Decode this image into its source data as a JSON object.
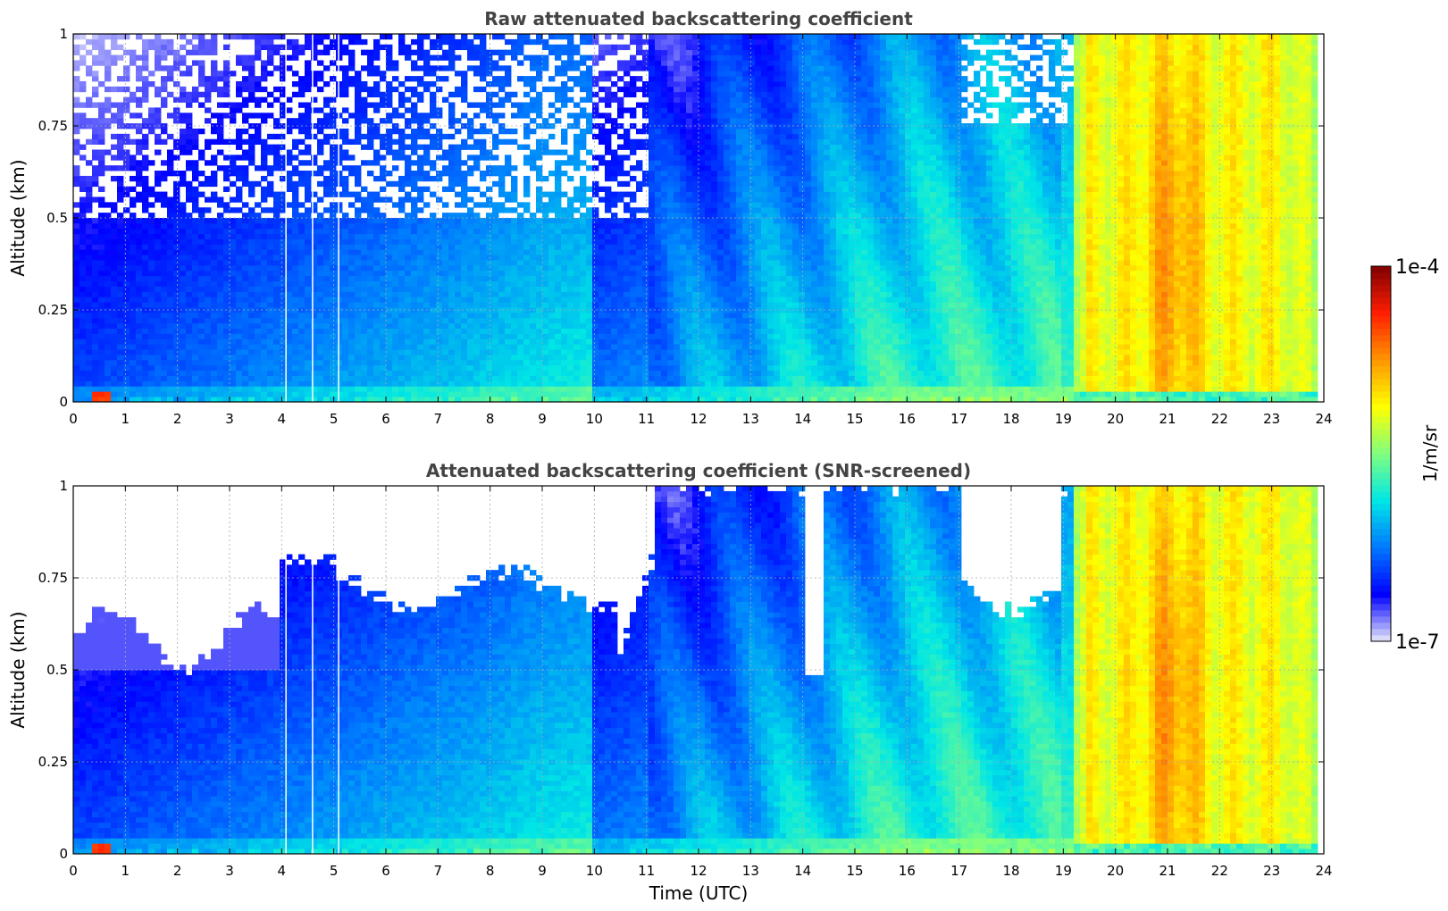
{
  "chart_data": [
    {
      "type": "heatmap",
      "title": "Raw attenuated backscattering coefficient",
      "xlabel": "",
      "ylabel": "Altitude (km)",
      "xlim": [
        0,
        24
      ],
      "ylim": [
        0,
        1
      ],
      "x_ticks": [
        "0",
        "1",
        "2",
        "3",
        "4",
        "5",
        "6",
        "7",
        "8",
        "9",
        "10",
        "11",
        "12",
        "13",
        "14",
        "15",
        "16",
        "17",
        "18",
        "19",
        "20",
        "21",
        "22",
        "23",
        "24"
      ],
      "y_ticks": [
        "0",
        "0.25",
        "0.5",
        "0.75",
        "1"
      ],
      "grid": true,
      "colorscale": "jet",
      "value_scale": "log",
      "clim": [
        "1e-7",
        "1e-4"
      ],
      "screened": false
    },
    {
      "type": "heatmap",
      "title": "Attenuated backscattering coefficient (SNR-screened)",
      "xlabel": "Time (UTC)",
      "ylabel": "Altitude (km)",
      "xlim": [
        0,
        24
      ],
      "ylim": [
        0,
        1
      ],
      "x_ticks": [
        "0",
        "1",
        "2",
        "3",
        "4",
        "5",
        "6",
        "7",
        "8",
        "9",
        "10",
        "11",
        "12",
        "13",
        "14",
        "15",
        "16",
        "17",
        "18",
        "19",
        "20",
        "21",
        "22",
        "23",
        "24"
      ],
      "y_ticks": [
        "0",
        "0.25",
        "0.5",
        "0.75",
        "1"
      ],
      "grid": true,
      "colorscale": "jet",
      "value_scale": "log",
      "clim": [
        "1e-7",
        "1e-4"
      ],
      "screened": true
    }
  ],
  "colorbar": {
    "top_label": "1e-4",
    "bottom_label": "1e-7",
    "unit": "1/m/sr",
    "colors": [
      "#e8e8fa",
      "#0000ff",
      "#0078ff",
      "#00e6e6",
      "#80ff80",
      "#ffff00",
      "#ff9600",
      "#ff1e00",
      "#800000"
    ]
  }
}
